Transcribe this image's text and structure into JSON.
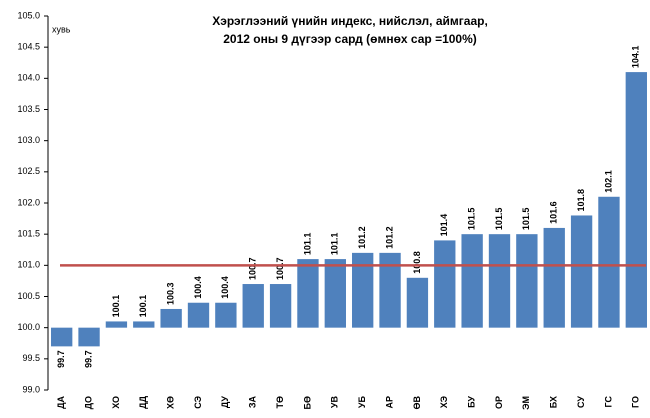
{
  "chart_data": {
    "type": "bar",
    "title": [
      "Хэрэглээний үнийн индекс, нийслэл, аймгаар,",
      "2012 оны  9 дүгээр сард (өмнөх сар =100%)"
    ],
    "y_unit": "хувь",
    "categories": [
      "ДА",
      "ДО",
      "ХО",
      "ДД",
      "ХӨ",
      "СЭ",
      "ДУ",
      "ЗА",
      "ТӨ",
      "БӨ",
      "УВ",
      "УБ",
      "АР",
      "ӨВ",
      "ХЭ",
      "БУ",
      "ОР",
      "ЭМ",
      "БХ",
      "СУ",
      "ГС",
      "ГО"
    ],
    "values": [
      99.7,
      99.7,
      100.1,
      100.1,
      100.3,
      100.4,
      100.4,
      100.7,
      100.7,
      101.1,
      101.1,
      101.2,
      101.2,
      100.8,
      101.4,
      101.5,
      101.5,
      101.5,
      101.6,
      101.8,
      102.1,
      104.1
    ],
    "color": "#4f81bd",
    "baseline": 100,
    "reference_line": {
      "value": 101,
      "color": "#c0504d"
    },
    "ylim": [
      99,
      105
    ],
    "yticks": [
      {
        "value": 99,
        "label": "99.0"
      },
      99.5,
      {
        "value": 100,
        "label": "100.0"
      },
      100.5,
      {
        "value": 101,
        "label": "101.0"
      },
      101.5,
      {
        "value": 102,
        "label": "102.0"
      },
      102.5,
      {
        "value": 103,
        "label": "103.0"
      },
      103.5,
      {
        "value": 104,
        "label": "104.0"
      },
      104.5,
      {
        "value": 105,
        "label": "105.0"
      }
    ],
    "grid": false
  }
}
